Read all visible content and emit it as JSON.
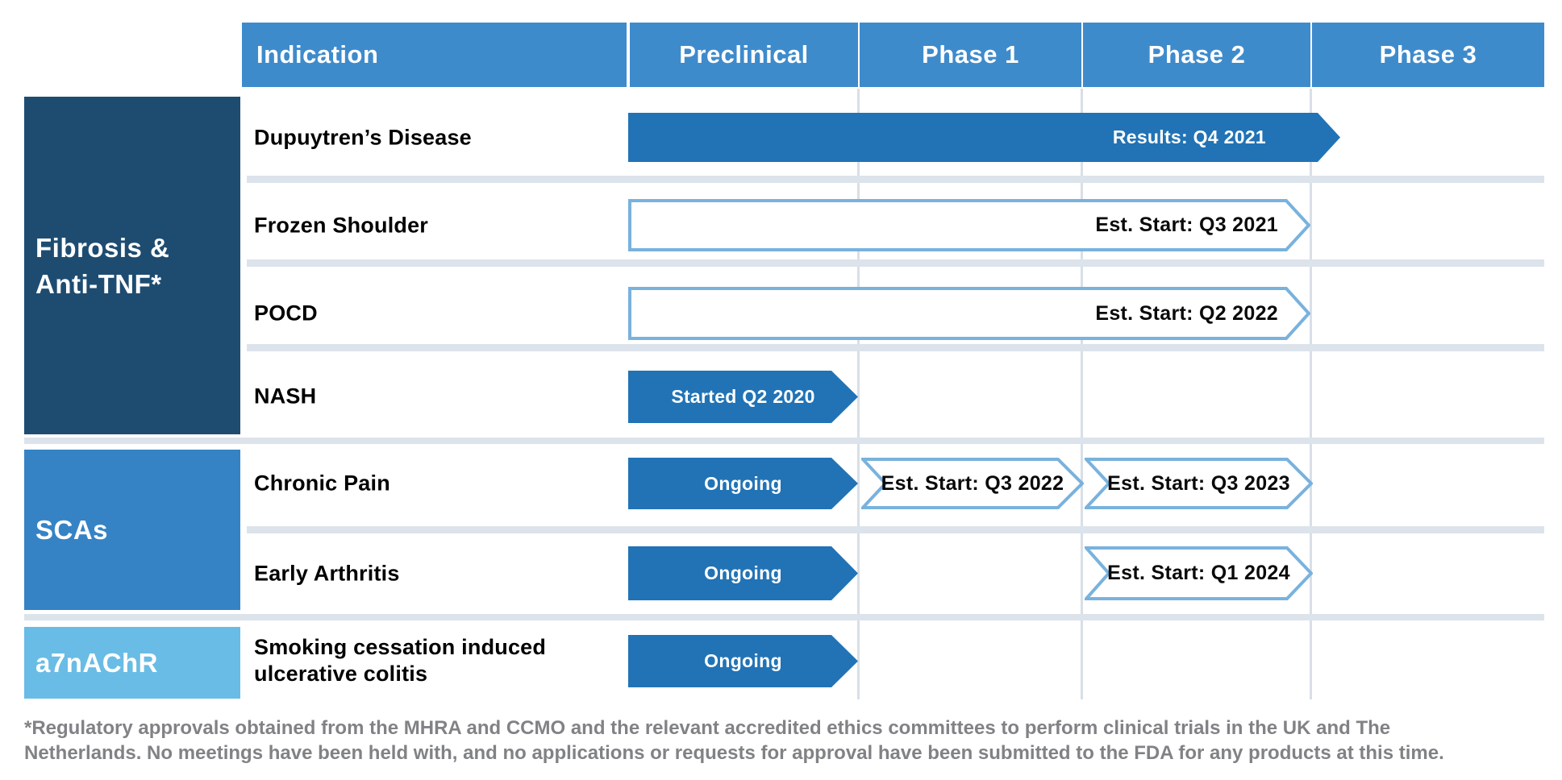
{
  "colors": {
    "header_bg": "#3E8BCC",
    "header_text": "#FFFFFF",
    "filled_bar": "#2173B5",
    "outline_stroke": "#79B2DD",
    "divider": "#DCE3EB",
    "gridline": "#D9DFE7",
    "row_label_text": "#000000",
    "footnote_text": "#808285"
  },
  "header": {
    "columns": [
      {
        "label": "Indication"
      },
      {
        "label": "Preclinical"
      },
      {
        "label": "Phase 1"
      },
      {
        "label": "Phase 2"
      },
      {
        "label": "Phase 3"
      }
    ]
  },
  "groups": [
    {
      "label": "Fibrosis &\nAnti-TNF*",
      "color": "#1E4C71"
    },
    {
      "label": "SCAs",
      "color": "#3583C5"
    },
    {
      "label": "a7nAChR",
      "color": "#69BCE5"
    }
  ],
  "rows": [
    {
      "label": "Dupuytren’s Disease",
      "group": 0,
      "bars": [
        {
          "style": "filled",
          "from": "Preclinical",
          "to": "Phase 2",
          "overshoot": true,
          "label": "Results: Q4 2021",
          "label_align": "right"
        }
      ]
    },
    {
      "label": "Frozen Shoulder",
      "group": 0,
      "bars": [
        {
          "style": "outlined",
          "from": "Preclinical",
          "to": "Phase 2",
          "label": "Est. Start: Q3 2021",
          "label_align": "right"
        }
      ]
    },
    {
      "label": "POCD",
      "group": 0,
      "bars": [
        {
          "style": "outlined",
          "from": "Preclinical",
          "to": "Phase 2",
          "label": "Est. Start: Q2 2022",
          "label_align": "right"
        }
      ]
    },
    {
      "label": "NASH",
      "group": 0,
      "bars": [
        {
          "style": "filled",
          "from": "Preclinical",
          "to": "Preclinical",
          "label": "Started Q2 2020",
          "label_align": "center"
        }
      ]
    },
    {
      "label": "Chronic Pain",
      "group": 1,
      "bars": [
        {
          "style": "filled",
          "from": "Preclinical",
          "to": "Preclinical",
          "label": "Ongoing",
          "label_align": "center"
        },
        {
          "style": "outlined-chevron",
          "from": "Phase 1",
          "to": "Phase 1",
          "label": "Est. Start: Q3 2022",
          "label_align": "center"
        },
        {
          "style": "outlined-chevron",
          "from": "Phase 2",
          "to": "Phase 2",
          "label": "Est. Start: Q3 2023",
          "label_align": "center"
        }
      ]
    },
    {
      "label": "Early Arthritis",
      "group": 1,
      "bars": [
        {
          "style": "filled",
          "from": "Preclinical",
          "to": "Preclinical",
          "label": "Ongoing",
          "label_align": "center"
        },
        {
          "style": "outlined-chevron",
          "from": "Phase 2",
          "to": "Phase 2",
          "label": "Est. Start: Q1 2024",
          "label_align": "center"
        }
      ]
    },
    {
      "label": "Smoking cessation induced\nulcerative colitis",
      "group": 2,
      "bars": [
        {
          "style": "filled",
          "from": "Preclinical",
          "to": "Preclinical",
          "label": "Ongoing",
          "label_align": "center"
        }
      ]
    }
  ],
  "footnote": {
    "line1": "*Regulatory approvals obtained from the MHRA and CCMO and the relevant accredited ethics committees to perform clinical trials in the UK and The",
    "line2": "Netherlands. No meetings have been held with, and no applications or requests for approval have been submitted to the FDA for any products at this time."
  },
  "chart_data": {
    "type": "table",
    "title": "",
    "columns": [
      "Indication",
      "Preclinical",
      "Phase 1",
      "Phase 2",
      "Phase 3"
    ],
    "groups": [
      {
        "name": "Fibrosis & Anti-TNF*",
        "rows": [
          "Dupuytren’s Disease",
          "Frozen Shoulder",
          "POCD",
          "NASH"
        ]
      },
      {
        "name": "SCAs",
        "rows": [
          "Chronic Pain",
          "Early Arthritis"
        ]
      },
      {
        "name": "a7nAChR",
        "rows": [
          "Smoking cessation induced ulcerative colitis"
        ]
      }
    ],
    "bars": [
      {
        "row": "Dupuytren’s Disease",
        "span": [
          "Preclinical",
          "Phase 2"
        ],
        "style": "filled",
        "label": "Results: Q4 2021"
      },
      {
        "row": "Frozen Shoulder",
        "span": [
          "Preclinical",
          "Phase 2"
        ],
        "style": "outlined",
        "label": "Est. Start: Q3 2021"
      },
      {
        "row": "POCD",
        "span": [
          "Preclinical",
          "Phase 2"
        ],
        "style": "outlined",
        "label": "Est. Start: Q2 2022"
      },
      {
        "row": "NASH",
        "span": [
          "Preclinical",
          "Preclinical"
        ],
        "style": "filled",
        "label": "Started Q2 2020"
      },
      {
        "row": "Chronic Pain",
        "span": [
          "Preclinical",
          "Preclinical"
        ],
        "style": "filled",
        "label": "Ongoing"
      },
      {
        "row": "Chronic Pain",
        "span": [
          "Phase 1",
          "Phase 1"
        ],
        "style": "outlined",
        "label": "Est. Start: Q3 2022"
      },
      {
        "row": "Chronic Pain",
        "span": [
          "Phase 2",
          "Phase 2"
        ],
        "style": "outlined",
        "label": "Est. Start: Q3 2023"
      },
      {
        "row": "Early Arthritis",
        "span": [
          "Preclinical",
          "Preclinical"
        ],
        "style": "filled",
        "label": "Ongoing"
      },
      {
        "row": "Early Arthritis",
        "span": [
          "Phase 2",
          "Phase 2"
        ],
        "style": "outlined",
        "label": "Est. Start: Q1 2024"
      },
      {
        "row": "Smoking cessation induced ulcerative colitis",
        "span": [
          "Preclinical",
          "Preclinical"
        ],
        "style": "filled",
        "label": "Ongoing"
      }
    ],
    "legend_position": "none",
    "grid": true
  }
}
